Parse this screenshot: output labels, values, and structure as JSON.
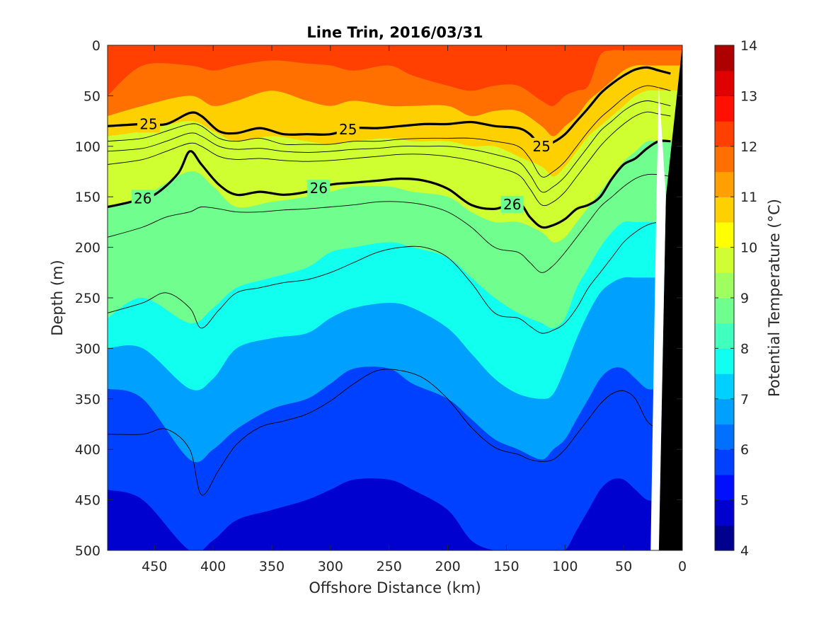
{
  "chart_data": {
    "type": "heatmap",
    "subtype": "filled-contour-section",
    "title": "Line Trin, 2016/03/31",
    "xlabel": "Offshore Distance (km)",
    "ylabel": "Depth (m)",
    "xlim": [
      490,
      0
    ],
    "ylim": [
      0,
      500
    ],
    "x_reversed": true,
    "y_reversed": true,
    "x_ticks": [
      "450",
      "400",
      "350",
      "300",
      "250",
      "200",
      "150",
      "100",
      "50",
      "0"
    ],
    "x_tick_values": [
      450,
      400,
      350,
      300,
      250,
      200,
      150,
      100,
      50,
      0
    ],
    "y_ticks": [
      "0",
      "50",
      "100",
      "150",
      "200",
      "250",
      "300",
      "350",
      "400",
      "450",
      "500"
    ],
    "y_tick_values": [
      0,
      50,
      100,
      150,
      200,
      250,
      300,
      350,
      400,
      450,
      500
    ],
    "colorbar": {
      "label": "Potential Temperature (°C)",
      "min": 4,
      "max": 14,
      "step": 0.5,
      "ticks": [
        "4",
        "5",
        "6",
        "7",
        "8",
        "9",
        "10",
        "11",
        "12",
        "13",
        "14"
      ],
      "tick_values": [
        4,
        5,
        6,
        7,
        8,
        9,
        10,
        11,
        12,
        13,
        14
      ],
      "colors": [
        "#00008F",
        "#0000CF",
        "#0010FF",
        "#0040FF",
        "#0070FF",
        "#00A0FF",
        "#00D0FF",
        "#10FFEF",
        "#40FFBF",
        "#70FF8F",
        "#A0FF60",
        "#CFFF30",
        "#FFFF00",
        "#FFD000",
        "#FFA000",
        "#FF7000",
        "#FF4000",
        "#FF1000",
        "#DF0000",
        "#AF0000"
      ]
    },
    "temperature_isotherms_depth_m": {
      "x_km": [
        490,
        460,
        420,
        400,
        380,
        350,
        320,
        300,
        280,
        250,
        230,
        200,
        180,
        160,
        140,
        120,
        110,
        100,
        90,
        80,
        70,
        60,
        50,
        40,
        30,
        20
      ],
      "t12": [
        50,
        20,
        20,
        25,
        20,
        15,
        18,
        20,
        25,
        20,
        30,
        40,
        45,
        40,
        40,
        55,
        60,
        50,
        45,
        40,
        10,
        5,
        5,
        5,
        5,
        5
      ],
      "t11": [
        70,
        60,
        50,
        60,
        55,
        45,
        55,
        60,
        55,
        60,
        60,
        60,
        70,
        65,
        65,
        80,
        90,
        80,
        70,
        55,
        45,
        35,
        25,
        20,
        20,
        20
      ],
      "t10": [
        90,
        85,
        75,
        85,
        95,
        90,
        95,
        98,
        95,
        92,
        95,
        95,
        100,
        100,
        110,
        120,
        130,
        120,
        105,
        90,
        80,
        70,
        60,
        50,
        45,
        45
      ],
      "t9": [
        160,
        150,
        125,
        140,
        160,
        155,
        150,
        145,
        140,
        140,
        145,
        150,
        165,
        175,
        175,
        185,
        195,
        190,
        175,
        160,
        145,
        130,
        115,
        105,
        95,
        95
      ],
      "t8": [
        270,
        250,
        275,
        260,
        240,
        230,
        220,
        205,
        200,
        195,
        200,
        210,
        230,
        250,
        265,
        275,
        280,
        270,
        240,
        220,
        200,
        185,
        175,
        175,
        175,
        175
      ],
      "t7": [
        300,
        300,
        340,
        330,
        300,
        290,
        285,
        270,
        260,
        255,
        260,
        280,
        305,
        330,
        345,
        350,
        345,
        320,
        290,
        265,
        245,
        235,
        230,
        230,
        230,
        230
      ],
      "t6": [
        340,
        350,
        410,
        400,
        380,
        360,
        350,
        335,
        320,
        320,
        335,
        350,
        370,
        390,
        400,
        410,
        400,
        390,
        370,
        350,
        330,
        320,
        320,
        330,
        340,
        340
      ],
      "t5": [
        440,
        450,
        500,
        490,
        470,
        460,
        450,
        440,
        430,
        430,
        440,
        460,
        490,
        500,
        500,
        500,
        500,
        500,
        480,
        460,
        440,
        430,
        430,
        440,
        450,
        450
      ]
    },
    "density_contours": [
      {
        "label": "25",
        "x_km": [
          490,
          460,
          440,
          420,
          410,
          395,
          380,
          360,
          340,
          320,
          300,
          280,
          260,
          240,
          220,
          200,
          180,
          160,
          140,
          130,
          120,
          110,
          100,
          90,
          80,
          70,
          60,
          50,
          40,
          30,
          20,
          10
        ],
        "depth_m": [
          80,
          78,
          78,
          67,
          70,
          85,
          87,
          82,
          88,
          88,
          88,
          82,
          82,
          80,
          78,
          78,
          76,
          80,
          82,
          88,
          100,
          96,
          88,
          75,
          62,
          48,
          38,
          30,
          24,
          22,
          25,
          28
        ]
      },
      {
        "label": "26",
        "x_km": [
          490,
          470,
          450,
          430,
          420,
          410,
          395,
          380,
          360,
          340,
          320,
          300,
          280,
          260,
          240,
          220,
          200,
          180,
          160,
          140,
          130,
          120,
          110,
          100,
          90,
          80,
          70,
          60,
          50,
          40,
          30,
          20,
          10
        ],
        "depth_m": [
          160,
          155,
          148,
          127,
          105,
          118,
          138,
          148,
          145,
          148,
          145,
          138,
          136,
          134,
          132,
          134,
          142,
          158,
          162,
          156,
          170,
          180,
          178,
          172,
          162,
          158,
          150,
          132,
          118,
          112,
          102,
          95,
          95
        ]
      }
    ],
    "thin_contours_depth_m": {
      "x_km": [
        490,
        460,
        440,
        420,
        410,
        395,
        380,
        360,
        340,
        320,
        300,
        280,
        260,
        240,
        220,
        200,
        180,
        160,
        140,
        130,
        120,
        110,
        100,
        90,
        80,
        70,
        60,
        50,
        40,
        30,
        20,
        10
      ],
      "levels": [
        [
          95,
          92,
          85,
          78,
          80,
          92,
          95,
          92,
          98,
          98,
          98,
          95,
          95,
          93,
          92,
          92,
          92,
          95,
          100,
          112,
          130,
          125,
          115,
          100,
          85,
          72,
          62,
          52,
          44,
          40,
          42,
          45
        ],
        [
          105,
          102,
          95,
          87,
          90,
          100,
          103,
          102,
          105,
          106,
          105,
          103,
          102,
          100,
          100,
          100,
          103,
          108,
          115,
          128,
          145,
          140,
          130,
          115,
          100,
          85,
          75,
          65,
          58,
          55,
          57,
          60
        ],
        [
          118,
          113,
          105,
          97,
          100,
          110,
          113,
          112,
          114,
          115,
          114,
          112,
          110,
          108,
          108,
          110,
          114,
          120,
          128,
          142,
          158,
          155,
          145,
          130,
          115,
          100,
          88,
          78,
          70,
          66,
          68,
          70
        ],
        [
          190,
          180,
          170,
          165,
          160,
          162,
          165,
          165,
          163,
          162,
          160,
          158,
          155,
          155,
          158,
          165,
          180,
          200,
          205,
          215,
          225,
          218,
          205,
          190,
          175,
          160,
          150,
          140,
          132,
          128,
          128,
          130
        ],
        [
          265,
          255,
          245,
          260,
          280,
          262,
          245,
          240,
          235,
          232,
          225,
          215,
          205,
          200,
          200,
          210,
          235,
          265,
          270,
          278,
          285,
          282,
          275,
          260,
          240,
          225,
          210,
          195,
          185,
          178,
          175,
          175
        ],
        [
          385,
          385,
          380,
          400,
          445,
          420,
          395,
          378,
          372,
          365,
          352,
          335,
          322,
          322,
          330,
          350,
          378,
          398,
          405,
          410,
          412,
          410,
          400,
          385,
          370,
          355,
          345,
          342,
          350,
          372,
          380,
          385
        ]
      ]
    },
    "land_mask": {
      "note": "coastal bottom region"
    }
  }
}
